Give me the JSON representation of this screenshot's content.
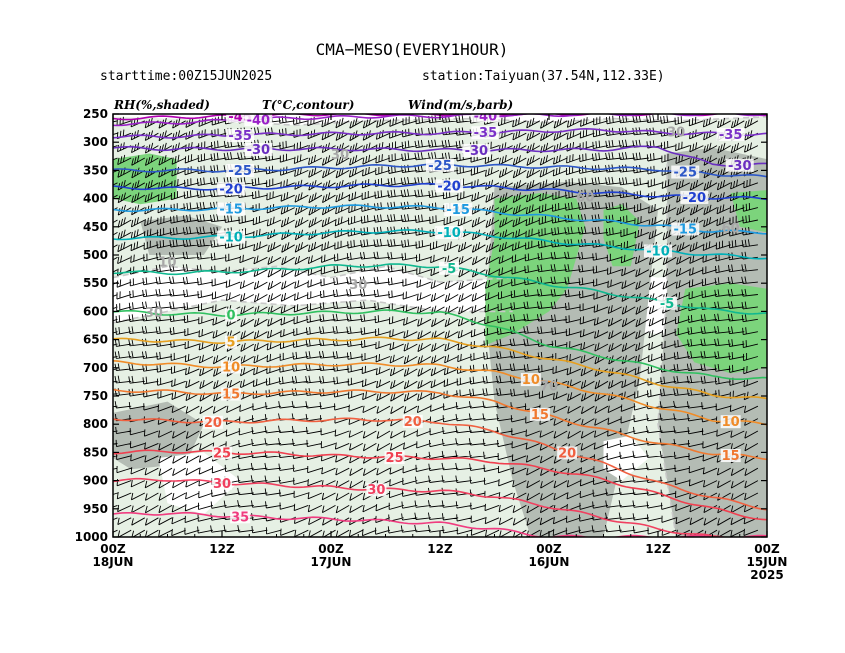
{
  "chart_data": {
    "type": "meteogram-cross-section",
    "title": "CMA−MESO(EVERY1HOUR)",
    "subtitle_left": "starttime:00Z15JUN2025",
    "subtitle_right": "station:Taiyuan(37.54N,112.33E)",
    "legend": {
      "rh": "RH(%,shaded)",
      "temp": "T(°C,contour)",
      "wind": "Wind(m/s,barb)"
    },
    "y_axis": {
      "label": "",
      "unit": "hPa",
      "ticks": [
        "250",
        "300",
        "350",
        "400",
        "450",
        "500",
        "550",
        "600",
        "650",
        "700",
        "750",
        "800",
        "850",
        "900",
        "950",
        "1000"
      ],
      "range": [
        250,
        1000
      ]
    },
    "x_axis": {
      "label": "",
      "range_hours": [
        0,
        72
      ],
      "ticks": [
        {
          "hour": 0,
          "line1": "00Z",
          "line2": "18JUN",
          "line3": ""
        },
        {
          "hour": 12,
          "line1": "12Z",
          "line2": "",
          "line3": ""
        },
        {
          "hour": 24,
          "line1": "00Z",
          "line2": "17JUN",
          "line3": ""
        },
        {
          "hour": 36,
          "line1": "12Z",
          "line2": "",
          "line3": ""
        },
        {
          "hour": 48,
          "line1": "00Z",
          "line2": "16JUN",
          "line3": ""
        },
        {
          "hour": 60,
          "line1": "12Z",
          "line2": "",
          "line3": ""
        },
        {
          "hour": 72,
          "line1": "00Z",
          "line2": "15JUN",
          "line3": "2025"
        }
      ]
    },
    "temperature_contours": [
      {
        "value": -45,
        "label": "-45",
        "color": "#b000b0",
        "p": [
          258,
          256,
          254,
          252,
          250,
          250,
          250,
          250,
          250,
          250,
          250,
          250,
          250
        ],
        "labels_at": [
          14
        ]
      },
      {
        "value": -40,
        "label": "-40",
        "color": "#9a20c8",
        "p": [
          268,
          266,
          262,
          258,
          256,
          254,
          254,
          252,
          252,
          250,
          250,
          250,
          250
        ],
        "labels_at": [
          16,
          41
        ]
      },
      {
        "value": -35,
        "label": "-35",
        "color": "#7a30c8",
        "p": [
          290,
          290,
          288,
          286,
          285,
          284,
          284,
          282,
          280,
          278,
          283,
          285,
          286
        ],
        "labels_at": [
          14,
          41,
          68
        ]
      },
      {
        "value": -30,
        "label": "-30",
        "color": "#6a2fc0",
        "p": [
          310,
          312,
          312,
          312,
          312,
          313,
          314,
          314,
          314,
          313,
          308,
          340,
          340
        ],
        "labels_at": [
          16,
          40,
          69
        ]
      },
      {
        "value": -25,
        "label": "-25",
        "color": "#2d58c8",
        "p": [
          350,
          350,
          350,
          348,
          345,
          342,
          340,
          342,
          344,
          346,
          348,
          356,
          362
        ],
        "labels_at": [
          14,
          36,
          63
        ]
      },
      {
        "value": -20,
        "label": "-20",
        "color": "#2040d0",
        "p": [
          380,
          382,
          382,
          380,
          378,
          376,
          376,
          380,
          385,
          390,
          395,
          398,
          400
        ],
        "labels_at": [
          13,
          37,
          64
        ]
      },
      {
        "value": -15,
        "label": "-15",
        "color": "#1e9ae0",
        "p": [
          420,
          420,
          418,
          416,
          414,
          414,
          416,
          424,
          432,
          440,
          448,
          458,
          460
        ],
        "labels_at": [
          13,
          38,
          63
        ]
      },
      {
        "value": -10,
        "label": "-10",
        "color": "#00b0b8",
        "p": [
          470,
          470,
          468,
          464,
          460,
          458,
          458,
          466,
          476,
          484,
          492,
          500,
          505
        ],
        "labels_at": [
          13,
          37,
          60
        ]
      },
      {
        "value": -5,
        "label": "-5",
        "color": "#10b890",
        "p": [
          530,
          532,
          530,
          526,
          520,
          518,
          520,
          536,
          552,
          566,
          582,
          598,
          604
        ],
        "labels_at": [
          37,
          61
        ]
      },
      {
        "value": 0,
        "label": "0",
        "color": "#30c060",
        "p": [
          600,
          604,
          606,
          604,
          602,
          600,
          602,
          626,
          660,
          680,
          700,
          716,
          720
        ],
        "labels_at": [
          13
        ]
      },
      {
        "value": 5,
        "label": "5",
        "color": "#e6a020",
        "p": [
          650,
          652,
          654,
          652,
          650,
          648,
          650,
          664,
          684,
          704,
          728,
          748,
          756
        ],
        "labels_at": [
          13
        ]
      },
      {
        "value": 10,
        "label": "10",
        "color": "#f08c28",
        "p": [
          690,
          694,
          698,
          696,
          694,
          694,
          696,
          708,
          726,
          746,
          770,
          792,
          800
        ],
        "labels_at": [
          13,
          46,
          68
        ]
      },
      {
        "value": 15,
        "label": "15",
        "color": "#f07830",
        "p": [
          740,
          742,
          746,
          744,
          742,
          742,
          744,
          760,
          786,
          810,
          834,
          852,
          860
        ],
        "labels_at": [
          13,
          47,
          68
        ]
      },
      {
        "value": 20,
        "label": "20",
        "color": "#f06040",
        "p": [
          790,
          794,
          796,
          794,
          792,
          792,
          796,
          812,
          840,
          870,
          904,
          930,
          950
        ],
        "labels_at": [
          11,
          33,
          50
        ]
      },
      {
        "value": 25,
        "label": "25",
        "color": "#f04050",
        "p": [
          850,
          848,
          850,
          852,
          856,
          858,
          860,
          866,
          880,
          898,
          924,
          950,
          970
        ],
        "labels_at": [
          12,
          31
        ]
      },
      {
        "value": 30,
        "label": "30",
        "color": "#f04060",
        "p": [
          900,
          898,
          904,
          908,
          912,
          916,
          918,
          928,
          946,
          966,
          986,
          1000,
          1000
        ],
        "labels_at": [
          12,
          29
        ]
      },
      {
        "value": 35,
        "label": "35",
        "color": "#f03c80",
        "p": [
          960,
          958,
          962,
          966,
          968,
          972,
          976,
          986,
          1000,
          1000,
          1000,
          1000,
          1000
        ],
        "labels_at": [
          14
        ]
      }
    ],
    "rh_shading": {
      "levels": [
        "<30",
        "30-60",
        "60-80",
        ">80"
      ],
      "colors": [
        "#ffffff",
        "#e6f0e4",
        "#b4bcb4",
        "#7cd47c"
      ]
    },
    "rh_labels": [
      {
        "text": "30",
        "hour": 4.5,
        "p": 610
      },
      {
        "text": "30",
        "hour": 27,
        "p": 560
      },
      {
        "text": "10",
        "hour": 6,
        "p": 520
      },
      {
        "text": "30",
        "hour": 25,
        "p": 330
      },
      {
        "text": "60",
        "hour": 52,
        "p": 405
      },
      {
        "text": "70",
        "hour": 48,
        "p": 740
      },
      {
        "text": "60",
        "hour": 68,
        "p": 460
      },
      {
        "text": "30",
        "hour": 62,
        "p": 290
      }
    ]
  }
}
